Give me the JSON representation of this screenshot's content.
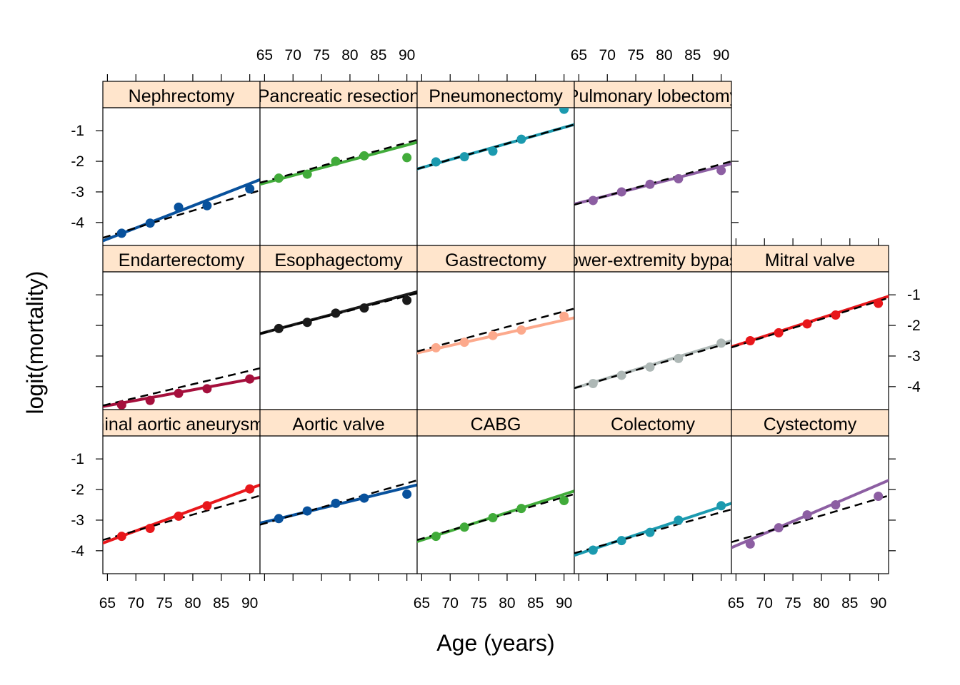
{
  "chart_data": {
    "type": "scatter",
    "xlabel": "Age (years)",
    "ylabel": "logit(mortality)",
    "x_ticks": [
      65,
      70,
      75,
      80,
      85,
      90
    ],
    "x_tick_labels": [
      "65",
      "70",
      "75",
      "80",
      "85",
      "90"
    ],
    "y_ticks": [
      -1,
      -2,
      -3,
      -4
    ],
    "y_tick_labels": [
      "-1",
      "-2",
      "-3",
      "-4"
    ],
    "xlim": [
      64.2,
      91.8
    ],
    "ylim": [
      -4.75,
      -0.25
    ],
    "x_points": [
      67.5,
      72.5,
      77.5,
      82.5,
      90
    ],
    "strip_color": "#FFE5CC",
    "reference_line": {
      "style": "dashed",
      "color": "#000000"
    },
    "panels": [
      {
        "name": "Nephrectomy",
        "row": 0,
        "col": 0,
        "color": "#08519C",
        "points": [
          -4.35,
          -4.02,
          -3.5,
          -3.45,
          -2.9
        ],
        "fit": [
          -4.6,
          -2.6
        ],
        "ref": [
          -4.5,
          -2.95
        ]
      },
      {
        "name": "Pancreatic resection",
        "row": 0,
        "col": 1,
        "color": "#41AB3A",
        "points": [
          -2.55,
          -2.42,
          -2.0,
          -1.82,
          -1.88
        ],
        "fit": [
          -2.75,
          -1.38
        ],
        "ref": [
          -2.7,
          -1.3
        ]
      },
      {
        "name": "Pneumonectomy",
        "row": 0,
        "col": 2,
        "color": "#1B9AAF",
        "points": [
          -2.02,
          -1.85,
          -1.67,
          -1.28,
          -0.3
        ],
        "fit": [
          -2.25,
          -0.8
        ],
        "ref": [
          -2.25,
          -0.8
        ]
      },
      {
        "name": "Pulmonary lobectomy",
        "row": 0,
        "col": 3,
        "color": "#8C5EA2",
        "points": [
          -3.28,
          -3.0,
          -2.75,
          -2.57,
          -2.3
        ],
        "fit": [
          -3.4,
          -2.08
        ],
        "ref": [
          -3.42,
          -2.0
        ]
      },
      {
        "name": "Endarterectomy",
        "row": 1,
        "col": 0,
        "color": "#A50F3C",
        "points": [
          -4.6,
          -4.45,
          -4.22,
          -4.07,
          -3.75
        ],
        "fit": [
          -4.65,
          -3.7
        ],
        "ref": [
          -4.62,
          -3.4
        ]
      },
      {
        "name": "Esophagectomy",
        "row": 1,
        "col": 1,
        "color": "#1A1A1A",
        "points": [
          -2.1,
          -1.9,
          -1.6,
          -1.43,
          -1.18
        ],
        "fit": [
          -2.27,
          -0.9
        ],
        "ref": [
          -2.27,
          -0.95
        ]
      },
      {
        "name": "Gastrectomy",
        "row": 1,
        "col": 2,
        "color": "#FCA98C",
        "points": [
          -2.73,
          -2.55,
          -2.33,
          -2.15,
          -1.7
        ],
        "fit": [
          -2.9,
          -1.75
        ],
        "ref": [
          -2.85,
          -1.45
        ]
      },
      {
        "name": "Lower-extremity bypass",
        "row": 1,
        "col": 3,
        "color": "#AEB8B6",
        "points": [
          -3.9,
          -3.63,
          -3.36,
          -3.08,
          -2.58
        ],
        "fit": [
          -4.05,
          -2.5
        ],
        "ref": [
          -4.05,
          -2.55
        ]
      },
      {
        "name": "Mitral valve",
        "row": 1,
        "col": 4,
        "color": "#E8171B",
        "points": [
          -2.5,
          -2.24,
          -1.95,
          -1.66,
          -1.28
        ],
        "fit": [
          -2.7,
          -1.05
        ],
        "ref": [
          -2.72,
          -1.1
        ]
      },
      {
        "name": "Abdominal aortic aneurysm repair",
        "row": 2,
        "col": 0,
        "color": "#E8171B",
        "points": [
          -3.53,
          -3.27,
          -2.87,
          -2.53,
          -1.98
        ],
        "fit": [
          -3.75,
          -1.85
        ],
        "ref": [
          -3.65,
          -2.2
        ]
      },
      {
        "name": "Aortic valve",
        "row": 2,
        "col": 1,
        "color": "#08519C",
        "points": [
          -2.95,
          -2.7,
          -2.45,
          -2.28,
          -2.15
        ],
        "fit": [
          -3.1,
          -1.85
        ],
        "ref": [
          -3.15,
          -1.7
        ]
      },
      {
        "name": "CABG",
        "row": 2,
        "col": 2,
        "color": "#41AB3A",
        "points": [
          -3.53,
          -3.23,
          -2.92,
          -2.62,
          -2.36
        ],
        "fit": [
          -3.7,
          -2.05
        ],
        "ref": [
          -3.65,
          -2.15
        ]
      },
      {
        "name": "Colectomy",
        "row": 2,
        "col": 3,
        "color": "#1B9AAF",
        "points": [
          -3.98,
          -3.67,
          -3.4,
          -3.0,
          -2.53
        ],
        "fit": [
          -4.15,
          -2.45
        ],
        "ref": [
          -4.08,
          -2.65
        ]
      },
      {
        "name": "Cystectomy",
        "row": 2,
        "col": 4,
        "color": "#8C5EA2",
        "points": [
          -3.78,
          -3.25,
          -2.83,
          -2.5,
          -2.22
        ],
        "fit": [
          -3.9,
          -1.7
        ],
        "ref": [
          -3.72,
          -2.2
        ]
      }
    ]
  }
}
